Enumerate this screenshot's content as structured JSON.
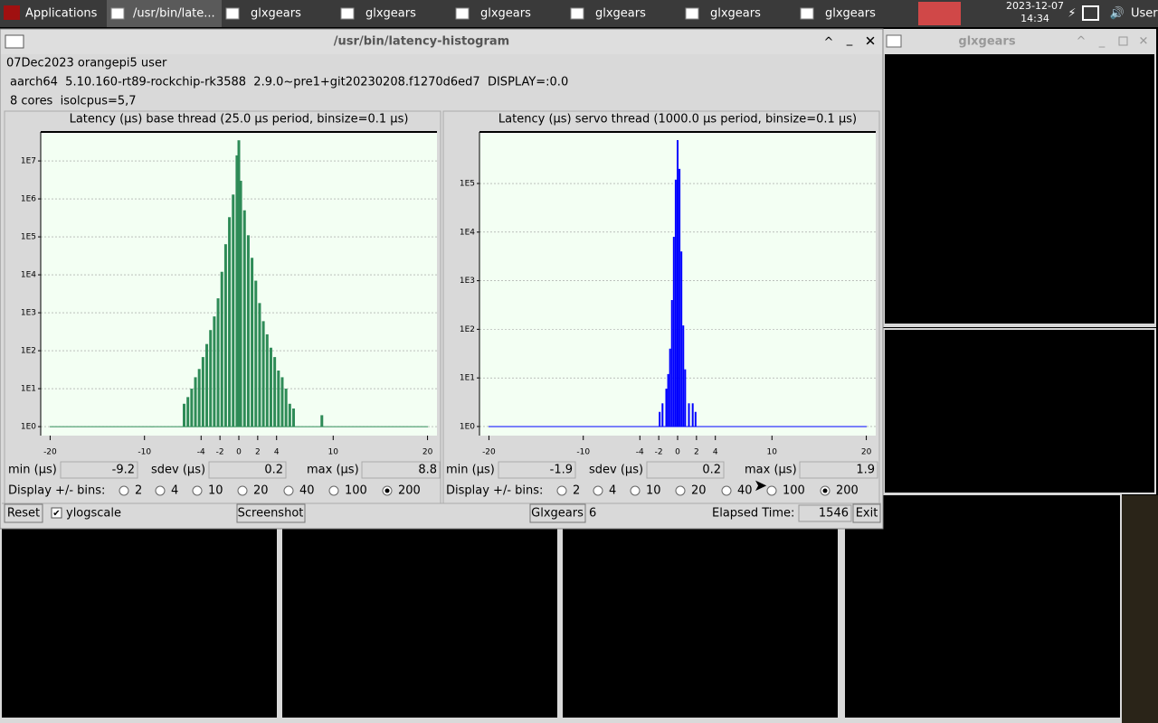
{
  "taskbar": {
    "menu": "Applications",
    "tasks": [
      "/usr/bin/late...",
      "glxgears",
      "glxgears",
      "glxgears",
      "glxgears",
      "glxgears",
      "glxgears"
    ],
    "date": "2023-12-07",
    "time": "14:34",
    "user": "User"
  },
  "window": {
    "title": "/usr/bin/latency-histogram",
    "info": [
      "07Dec2023 orangepi5 user",
      "aarch64  5.10.160-rt89-rockchip-rk3588  2.9.0~pre1+git20230208.f1270d6ed7  DISPLAY=:0.0",
      "8 cores  isolcpus=5,7"
    ]
  },
  "side_window": {
    "title": "glxgears"
  },
  "chart_data": [
    {
      "type": "bar",
      "title": "Latency (µs) base thread (25.0 µs period, binsize=0.1 µs)",
      "color": "#2e8b57",
      "log_y": true,
      "grid": true,
      "x": [
        -9.2,
        -5.8,
        -5.4,
        -5.0,
        -4.6,
        -4.2,
        -3.8,
        -3.4,
        -3.0,
        -2.6,
        -2.2,
        -1.8,
        -1.4,
        -1.0,
        -0.6,
        -0.2,
        0.0,
        0.2,
        0.6,
        1.0,
        1.4,
        1.8,
        2.2,
        2.6,
        3.0,
        3.4,
        3.8,
        4.2,
        4.6,
        5.0,
        5.4,
        5.8,
        8.8
      ],
      "values": [
        1,
        4,
        6,
        10,
        20,
        33,
        68,
        150,
        350,
        800,
        2400,
        12000,
        64000,
        330000,
        1300000,
        14000000,
        35000000,
        3000000,
        500000,
        110000,
        28000,
        7000,
        1800,
        600,
        270,
        120,
        68,
        30,
        20,
        10,
        4,
        3,
        2
      ],
      "xlim": [
        -21,
        21
      ],
      "xticks": [
        -20,
        -10,
        -4,
        -2,
        0,
        2,
        4,
        10,
        20
      ],
      "ylim": [
        0.58,
        58000000
      ],
      "yticks": [
        {
          "value": 1,
          "label": "1E0"
        },
        {
          "value": 10,
          "label": "1E1"
        },
        {
          "value": 100,
          "label": "1E2"
        },
        {
          "value": 1000,
          "label": "1E3"
        },
        {
          "value": 10000,
          "label": "1E4"
        },
        {
          "value": 100000,
          "label": "1E5"
        },
        {
          "value": 1000000,
          "label": "1E6"
        },
        {
          "value": 10000000,
          "label": "1E7"
        }
      ],
      "stats": [
        {
          "label": "min (µs)",
          "value": -9.2
        },
        {
          "label": "sdev (µs)",
          "value": 0.2
        },
        {
          "label": "max (µs)",
          "value": 8.8
        }
      ],
      "bins_label": "Display +/- bins:",
      "bin_options": [
        2,
        4,
        10,
        20,
        40,
        100,
        200
      ],
      "selected_bins": 200
    },
    {
      "type": "bar",
      "title": "Latency (µs) servo thread (1000.0 µs period, binsize=0.1 µs)",
      "color": "#0000ff",
      "log_y": true,
      "grid": true,
      "x": [
        -1.9,
        -1.6,
        -1.2,
        -1.0,
        -0.8,
        -0.6,
        -0.4,
        -0.2,
        0.0,
        0.2,
        0.4,
        0.6,
        0.8,
        1.2,
        1.6,
        1.9
      ],
      "values": [
        2,
        3,
        6,
        12,
        40,
        400,
        8000,
        120000,
        780000,
        200000,
        4000,
        120,
        15,
        3,
        3,
        2
      ],
      "xlim": [
        -21,
        21
      ],
      "xticks": [
        -20,
        -10,
        -4,
        -2,
        0,
        2,
        4,
        10,
        20
      ],
      "ylim": [
        0.65,
        1150000
      ],
      "yticks": [
        {
          "value": 1,
          "label": "1E0"
        },
        {
          "value": 10,
          "label": "1E1"
        },
        {
          "value": 100,
          "label": "1E2"
        },
        {
          "value": 1000,
          "label": "1E3"
        },
        {
          "value": 10000,
          "label": "1E4"
        },
        {
          "value": 100000,
          "label": "1E5"
        }
      ],
      "stats": [
        {
          "label": "min (µs)",
          "value": -1.9
        },
        {
          "label": "sdev (µs)",
          "value": 0.2
        },
        {
          "label": "max (µs)",
          "value": 1.9
        }
      ],
      "bins_label": "Display +/- bins:",
      "bin_options": [
        2,
        4,
        10,
        20,
        40,
        100,
        200
      ],
      "selected_bins": 200
    }
  ],
  "controls": {
    "reset": "Reset",
    "ylogscale": "ylogscale",
    "screenshot": "Screenshot",
    "glxgears": "Glxgears",
    "glxgears_count": 6,
    "elapsed_label": "Elapsed Time:",
    "elapsed": 1546,
    "exit": "Exit"
  }
}
